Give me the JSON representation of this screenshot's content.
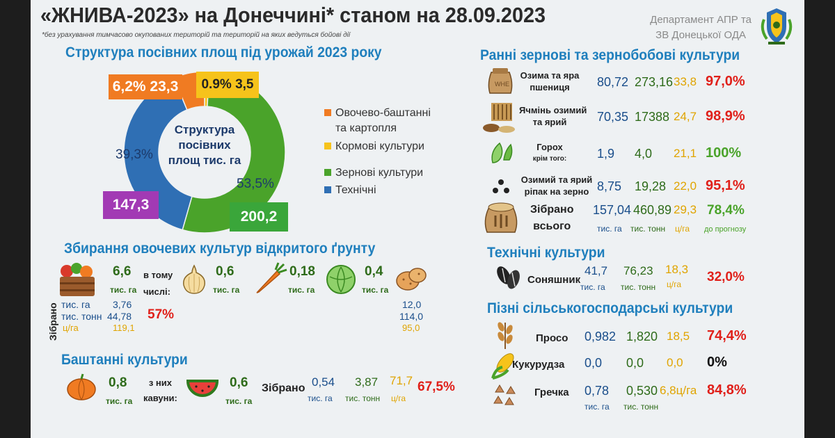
{
  "header": {
    "title": "«ЖНИВА-2023» на Донеччині* станом на 28.09.2023",
    "note": "*без урахування тимчасово окупованих територій та територій на яких ведуться бойові дії",
    "dept_line1": "Департамент АПР та",
    "dept_line2": "ЗВ Донецької ОДА"
  },
  "structure": {
    "heading": "Структура посівних площ під урожай 2023 року",
    "center_line1": "Структура",
    "center_line2": "посівних",
    "center_line3": "площ тис. га",
    "legend": [
      {
        "label_line1": "Овочево-баштанні",
        "label_line2": "та картопля",
        "color": "#f07b22"
      },
      {
        "label_line1": "Кормові культури",
        "label_line2": "",
        "color": "#f6c31b"
      },
      {
        "label_line1": "Зернові культури",
        "label_line2": "",
        "color": "#4aa32a"
      },
      {
        "label_line1": "Технічні",
        "label_line2": "",
        "color": "#2f6fb4"
      }
    ],
    "tag_veg_pct": "6,2%",
    "tag_veg_val": "23,3",
    "tag_feed_pct": "0.9%",
    "tag_feed_val": "3,5",
    "pct_tech": "39,3%",
    "pct_grain": "53,5%",
    "tag_tech_val": "147,3",
    "tag_grain_val": "200,2"
  },
  "chart_data": {
    "type": "pie",
    "categories": [
      "Овочево-баштанні та картопля",
      "Кормові культури",
      "Зернові культури",
      "Технічні"
    ],
    "values": [
      23.3,
      3.5,
      200.2,
      147.3
    ],
    "percents": [
      6.2,
      0.9,
      53.5,
      39.3
    ],
    "colors": [
      "#f07b22",
      "#f6c31b",
      "#4aa32a",
      "#2f6fb4"
    ]
  },
  "veg": {
    "heading": "Збирання овочевих культур відкритого ґрунту",
    "total_area": "6,6",
    "unit_tys_ha": "тис. га",
    "incl_line1": "в тому",
    "incl_line2": "числі:",
    "onion": "0,6",
    "carrot": "0,18",
    "cabbage": "0,4",
    "zibrano_vertical": "Зібрано",
    "row_unit1": "тис. га",
    "row_unit2": "тис. тонн",
    "row_unit3": "ц/га",
    "v_area": "3,76",
    "v_tonn": "44,78",
    "v_yield": "119,1",
    "v_pct": "57%",
    "potato_area": "12,0",
    "potato_tonn": "114,0",
    "potato_yield": "95,0"
  },
  "melon": {
    "heading": "Баштанні культури",
    "total": "0,8",
    "unit_tys_ha": "тис. га",
    "of_them1": "з них",
    "of_them2": "кавуни:",
    "watermelon": "0,6",
    "zibrano": "Зібрано",
    "area": "0,54",
    "tonn": "3,87",
    "yield": "71,7",
    "pct": "67,5%",
    "u_ha": "тис. га",
    "u_tonn": "тис. тонн",
    "u_yield": "ц/га"
  },
  "early": {
    "heading": "Ранні зернові та зернобобові культури",
    "rows": [
      {
        "name1": "Озима та яра",
        "name2": "пшениця",
        "area": "80,72",
        "tonn": "273,16",
        "yield": "33,8",
        "pct": "97,0%"
      },
      {
        "name1": "Ячмінь озимий",
        "name2": "та ярий",
        "area": "70,35",
        "tonn": "17388",
        "yield": "24,7",
        "pct": "98,9%"
      },
      {
        "name1": "Горох",
        "name2": "крім того:",
        "area": "1,9",
        "tonn": "4,0",
        "yield": "21,1",
        "pct": "100%"
      },
      {
        "name1": "Озимий та ярий",
        "name2": "ріпак на зерно",
        "area": "8,75",
        "tonn": "19,28",
        "yield": "22,0",
        "pct": "95,1%"
      }
    ],
    "total": {
      "name1": "Зібрано",
      "name2": "всього",
      "area": "157,04",
      "tonn": "460,89",
      "yield": "29,3",
      "pct": "78,4%"
    },
    "u_ha": "тис. га",
    "u_tonn": "тис. тонн",
    "u_yield": "ц/га",
    "u_forecast": "до прогнозу"
  },
  "tech": {
    "heading": "Технічні культури",
    "name": "Соняшник",
    "area": "41,7",
    "tonn": "76,23",
    "yield": "18,3",
    "pct": "32,0%",
    "u_ha": "тис. га",
    "u_tonn": "тис. тонн",
    "u_yield": "ц/га"
  },
  "late": {
    "heading": "Пізні сільськогосподарські культури",
    "rows": [
      {
        "name": "Просо",
        "area": "0,982",
        "tonn": "1,820",
        "yield": "18,5",
        "pct": "74,4%"
      },
      {
        "name": "Кукурудза",
        "area": "0,0",
        "tonn": "0,0",
        "yield": "0,0",
        "pct": "0%"
      },
      {
        "name": "Гречка",
        "area": "0,78",
        "tonn": "0,530",
        "yield": "6,8ц/га",
        "pct": "84,8%"
      }
    ],
    "u_ha": "тис. га",
    "u_tonn": "тис. тонн"
  }
}
